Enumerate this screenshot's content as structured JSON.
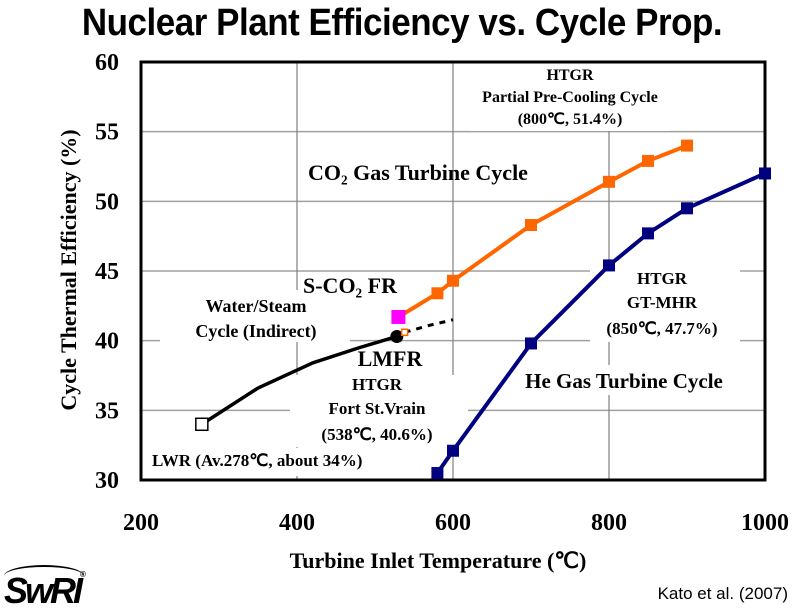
{
  "page_title": "Nuclear Plant Efficiency vs. Cycle Prop.",
  "credit": "Kato et al. (2007)",
  "logo": {
    "text": "SwRI",
    "mark": "®"
  },
  "colors": {
    "co2": "#ff6600",
    "co2_label": "#ff3300",
    "he": "#000080",
    "he_label": "#333399",
    "sco2fr": "#ff00ff",
    "water": "#000000",
    "grid": "#a0a0a0"
  },
  "chart_data": {
    "type": "line",
    "title": "Nuclear Plant Efficiency vs. Cycle Prop.",
    "xlabel": "Turbine Inlet Temperature (℃)",
    "ylabel": "Cycle Thermal Efficiency (%)",
    "xlim": [
      200,
      1000
    ],
    "ylim": [
      30,
      60
    ],
    "xticks": [
      200,
      400,
      600,
      800,
      1000
    ],
    "yticks": [
      30,
      35,
      40,
      45,
      50,
      55,
      60
    ],
    "grid": true,
    "series": [
      {
        "name": "CO2 Gas Turbine Cycle",
        "marker": "filled-square",
        "x": [
          580,
          600,
          700,
          800,
          850,
          900
        ],
        "y": [
          43.4,
          44.3,
          48.3,
          51.4,
          52.9,
          54.0
        ]
      },
      {
        "name": "He Gas Turbine Cycle",
        "marker": "filled-square",
        "x": [
          580,
          600,
          700,
          800,
          850,
          900,
          1000
        ],
        "y": [
          30.5,
          32.1,
          39.8,
          45.4,
          47.7,
          49.5,
          52.0
        ]
      },
      {
        "name": "Water/Steam Cycle (Indirect)",
        "marker": "none",
        "x": [
          278,
          350,
          420,
          480,
          528
        ],
        "y": [
          34.0,
          36.6,
          38.4,
          39.5,
          40.3
        ]
      },
      {
        "name": "Water/Steam extrapolation",
        "style": "dashed",
        "x": [
          538,
          570,
          600
        ],
        "y": [
          40.6,
          41.1,
          41.5
        ]
      }
    ],
    "points": [
      {
        "name": "S-CO2 FR",
        "x": 530,
        "y": 41.7,
        "marker": "filled-square",
        "color": "#ff00ff"
      },
      {
        "name": "LWR",
        "x": 278,
        "y": 34.0,
        "marker": "hollow-square"
      },
      {
        "name": "LMFR",
        "x": 528,
        "y": 40.3,
        "marker": "filled-circle"
      },
      {
        "name": "HTGR Fort St.Vrain",
        "x": 538,
        "y": 40.6,
        "marker": "hollow-square"
      }
    ],
    "annotations": [
      {
        "id": "htgr_ppc",
        "lines": [
          "HTGR",
          "Partial Pre-Cooling Cycle",
          "(800℃, 51.4%)"
        ]
      },
      {
        "id": "co2_label",
        "text": "CO₂ Gas Turbine Cycle"
      },
      {
        "id": "sco2fr_label",
        "text": "S-CO₂ FR"
      },
      {
        "id": "water_label",
        "lines": [
          "Water/Steam",
          "Cycle (Indirect)"
        ]
      },
      {
        "id": "lmfr_label",
        "text": "LMFR"
      },
      {
        "id": "fsv_label",
        "lines": [
          "HTGR",
          "Fort St.Vrain",
          "(538℃, 40.6%)"
        ]
      },
      {
        "id": "lwr_label",
        "text": "LWR (Av.278℃, about 34%)"
      },
      {
        "id": "gtmhr_label",
        "lines": [
          "HTGR",
          "GT-MHR",
          "(850℃, 47.7%)"
        ]
      },
      {
        "id": "he_label",
        "text": "He Gas Turbine Cycle"
      }
    ]
  }
}
